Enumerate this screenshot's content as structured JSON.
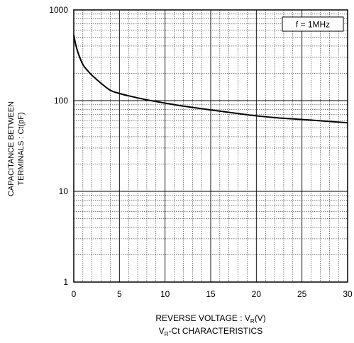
{
  "chart_data": {
    "type": "line",
    "title": "",
    "caption": {
      "main": "V",
      "sub": "R",
      "rest": "-Ct CHARACTERISTICS"
    },
    "xlabel": {
      "main": "REVERSE VOLTAGE : V",
      "sub": "R",
      "rest": "(V)"
    },
    "ylabel": [
      "CAPACITANCE BETWEEN",
      "TERMINALS : Ct(pF)"
    ],
    "xlim": [
      0,
      30
    ],
    "ylim": [
      1,
      1000
    ],
    "y_scale": "log",
    "grid": true,
    "x_ticks": [
      "0",
      "5",
      "10",
      "15",
      "20",
      "25",
      "30"
    ],
    "y_ticks": [
      "1",
      "10",
      "100",
      "1000"
    ],
    "legend": {
      "text": "f = 1MHz",
      "placement": "top-right"
    },
    "series": [
      {
        "name": "",
        "x": [
          0,
          0.2,
          0.5,
          1,
          1.5,
          2,
          3,
          4,
          5,
          6,
          8,
          10,
          12,
          15,
          18,
          20,
          22,
          25,
          28,
          30
        ],
        "y": [
          530,
          420,
          330,
          250,
          215,
          190,
          155,
          130,
          120,
          113,
          102,
          94,
          87,
          79,
          72,
          68,
          65,
          62,
          59,
          57
        ]
      }
    ]
  }
}
